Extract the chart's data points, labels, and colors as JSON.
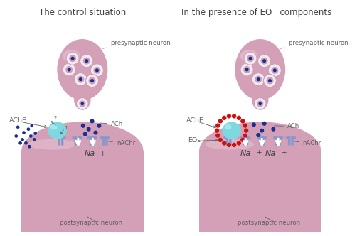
{
  "bg_color": "#ffffff",
  "neuron_pink": "#d4a0b8",
  "neuron_pink_light": "#e8c0d0",
  "neuron_pink_lighter": "#f0d0e0",
  "ache_cyan": "#7dd8e0",
  "ache_cyan_light": "#b0eaf0",
  "vesicle_ring": "#e8d0dc",
  "vesicle_fill": "#c8a0b8",
  "vesicle_white": "#f5e8ef",
  "dot_blue_dark": "#0a1a70",
  "dot_blue": "#1a2e90",
  "receptor_blue": "#8898cc",
  "receptor_blue_light": "#aab8e0",
  "eo_red": "#cc1111",
  "arrow_white": "#ffffff",
  "text_gray": "#606060",
  "text_dark": "#404040",
  "left_title": "The control situation",
  "right_title": "In the presence of EO   components",
  "label_ache": "AChE",
  "label_ach": "ACh",
  "label_nachr": "nAChr",
  "label_na": "Na",
  "label_pre": "presynaptic neuron",
  "label_post": "postsynaptic neuron",
  "label_eos": "EOs"
}
